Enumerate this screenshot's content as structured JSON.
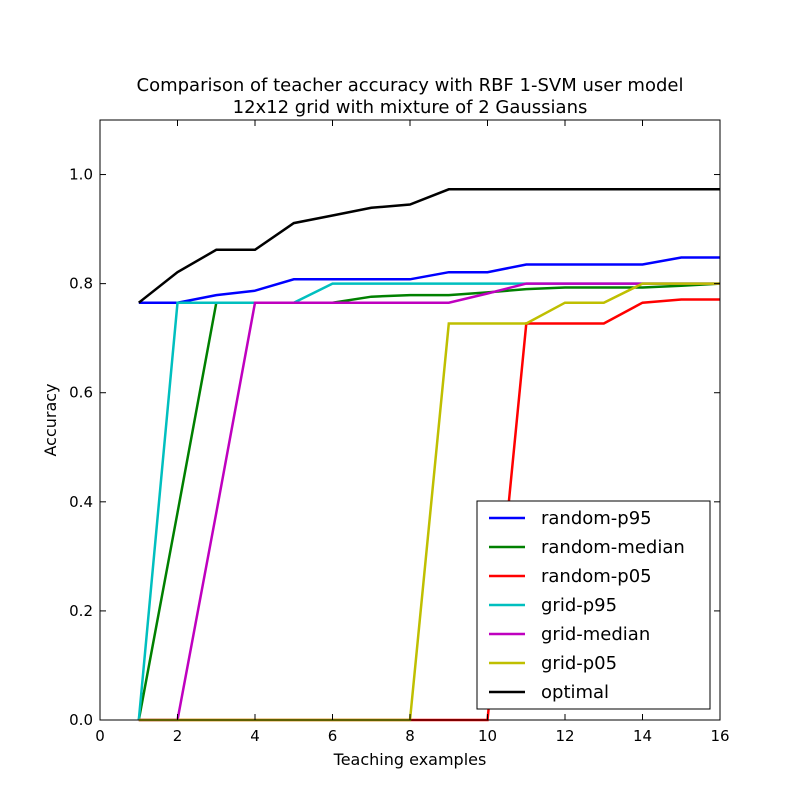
{
  "chart_data": {
    "type": "line",
    "title": "Comparison of teacher accuracy with RBF 1-SVM user model",
    "subtitle": "12x12 grid with mixture of 2 Gaussians",
    "xlabel": "Teaching examples",
    "ylabel": "Accuracy",
    "xlim": [
      0,
      16
    ],
    "ylim": [
      0,
      1.1
    ],
    "xticks": [
      0,
      2,
      4,
      6,
      8,
      10,
      12,
      14,
      16
    ],
    "xtick_labels": [
      "0",
      "2",
      "4",
      "6",
      "8",
      "10",
      "12",
      "14",
      "16"
    ],
    "yticks": [
      0.0,
      0.2,
      0.4,
      0.6,
      0.8,
      1.0
    ],
    "ytick_labels": [
      "0.0",
      "0.2",
      "0.4",
      "0.6",
      "0.8",
      "1.0"
    ],
    "grid": false,
    "legend_position": "bottom-right",
    "x": [
      1,
      2,
      3,
      4,
      5,
      6,
      7,
      8,
      9,
      10,
      11,
      12,
      13,
      14,
      15,
      16
    ],
    "series": [
      {
        "name": "random-p95",
        "color": "#0000ff",
        "values": [
          0.765,
          0.765,
          0.779,
          0.787,
          0.808,
          0.808,
          0.808,
          0.808,
          0.821,
          0.821,
          0.835,
          0.835,
          0.835,
          0.835,
          0.848,
          0.848
        ]
      },
      {
        "name": "random-median",
        "color": "#008000",
        "values": [
          0.0,
          0.38,
          0.765,
          0.765,
          0.765,
          0.765,
          0.776,
          0.779,
          0.779,
          0.784,
          0.79,
          0.793,
          0.793,
          0.793,
          0.796,
          0.8
        ]
      },
      {
        "name": "random-p05",
        "color": "#ff0000",
        "values": [
          0.0,
          0.0,
          0.0,
          0.0,
          0.0,
          0.0,
          0.0,
          0.0,
          0.0,
          0.0,
          0.727,
          0.727,
          0.727,
          0.765,
          0.771,
          0.771
        ]
      },
      {
        "name": "grid-p95",
        "color": "#00bfbf",
        "values": [
          0.0,
          0.765,
          0.765,
          0.765,
          0.765,
          0.8,
          0.8,
          0.8,
          0.8,
          0.8,
          0.8,
          0.8,
          0.8,
          0.8,
          0.8,
          0.8
        ]
      },
      {
        "name": "grid-median",
        "color": "#bf00bf",
        "values": [
          0.0,
          0.0,
          0.38,
          0.765,
          0.765,
          0.765,
          0.765,
          0.765,
          0.765,
          0.782,
          0.8,
          0.8,
          0.8,
          0.8,
          0.8,
          0.8
        ]
      },
      {
        "name": "grid-p05",
        "color": "#bfbf00",
        "values": [
          0.0,
          0.0,
          0.0,
          0.0,
          0.0,
          0.0,
          0.0,
          0.0,
          0.727,
          0.727,
          0.727,
          0.765,
          0.765,
          0.8,
          0.8,
          0.8
        ]
      },
      {
        "name": "optimal",
        "color": "#000000",
        "values": [
          0.765,
          0.821,
          0.862,
          0.862,
          0.911,
          0.925,
          0.939,
          0.945,
          0.973,
          0.973,
          0.973,
          0.973,
          0.973,
          0.973,
          0.973,
          0.973
        ]
      }
    ]
  }
}
